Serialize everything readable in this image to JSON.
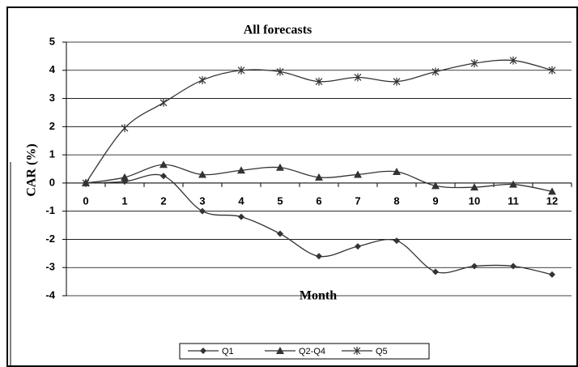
{
  "chart_data": {
    "type": "line",
    "title": "All forecasts",
    "x_label": "Month",
    "y_label": "CAR (%)",
    "categories": [
      "0",
      "1",
      "2",
      "3",
      "4",
      "5",
      "6",
      "7",
      "8",
      "9",
      "10",
      "11",
      "12"
    ],
    "series": [
      {
        "name": "Q1",
        "color": "#333333",
        "marker": "diamond",
        "values": [
          0,
          0.05,
          0.25,
          -1.0,
          -1.2,
          -1.8,
          -2.6,
          -2.25,
          -2.05,
          -3.15,
          -2.95,
          -2.95,
          -3.25
        ]
      },
      {
        "name": "Q2-Q4",
        "color": "#333333",
        "marker": "triangle",
        "values": [
          0,
          0.2,
          0.65,
          0.3,
          0.45,
          0.55,
          0.2,
          0.3,
          0.4,
          -0.1,
          -0.15,
          -0.05,
          -0.3
        ]
      },
      {
        "name": "Q5",
        "color": "#333333",
        "marker": "asterisk",
        "values": [
          0,
          1.95,
          2.85,
          3.65,
          4.0,
          3.95,
          3.6,
          3.75,
          3.6,
          3.95,
          4.25,
          4.35,
          4.0
        ]
      }
    ],
    "ylim": [
      -4,
      5
    ],
    "yticks": [
      -4,
      -3,
      -2,
      -1,
      0,
      1,
      2,
      3,
      4,
      5
    ],
    "grid": true,
    "legend": "bottom"
  }
}
